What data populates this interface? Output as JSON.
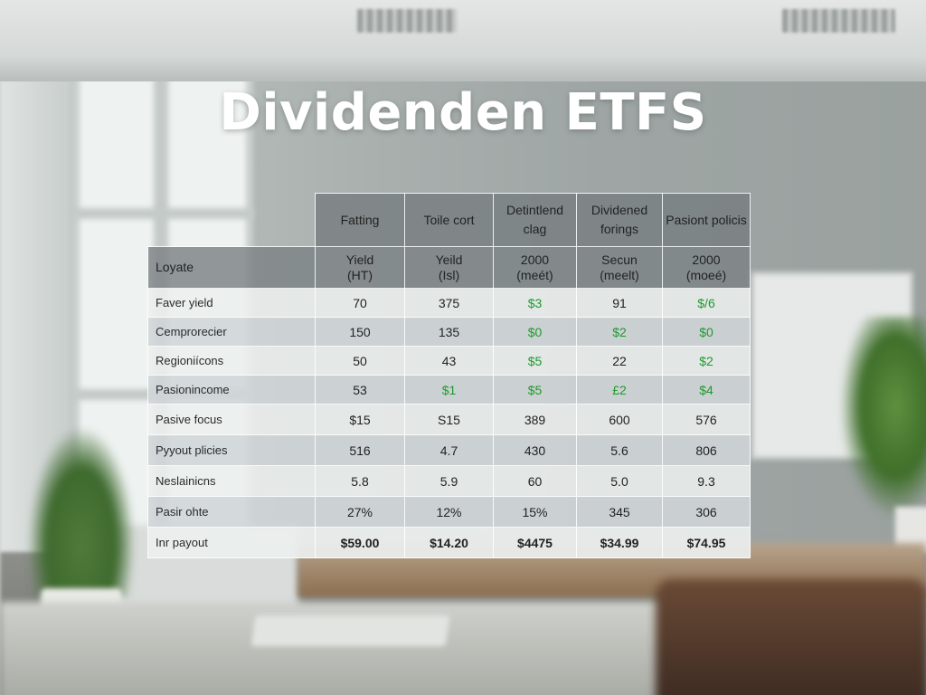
{
  "title": "Dividenden ETFS",
  "table": {
    "headers": [
      "Fatting",
      "Toile cort",
      "Detintlend clag",
      "Dividened forings",
      "Pasiont policis"
    ],
    "subheader": {
      "label": "Loyate",
      "cells": [
        [
          "Yield",
          "(HT)"
        ],
        [
          "Yeild",
          "(Isl)"
        ],
        [
          "2000",
          "(meét)"
        ],
        [
          "Secun",
          "(meelt)"
        ],
        [
          "2000",
          "(moeé)"
        ]
      ]
    },
    "rows": [
      {
        "label": "Faver yield",
        "values": [
          "70",
          "375",
          "$3",
          "91",
          "$/6"
        ],
        "green": [
          false,
          false,
          true,
          false,
          true
        ]
      },
      {
        "label": "Cemprorecier",
        "values": [
          "150",
          "135",
          "$0",
          "$2",
          "$0"
        ],
        "green": [
          false,
          false,
          true,
          true,
          true
        ]
      },
      {
        "label": "Regioniícons",
        "values": [
          "50",
          "43",
          "$5",
          "22",
          "$2"
        ],
        "green": [
          false,
          false,
          true,
          false,
          true
        ]
      },
      {
        "label": "Pasionincome",
        "values": [
          "53",
          "$1",
          "$5",
          "£2",
          "$4"
        ],
        "green": [
          false,
          true,
          true,
          true,
          true
        ]
      },
      {
        "label": "Pasive focus",
        "values": [
          "$15",
          "S15",
          "389",
          "600",
          "576"
        ],
        "green": [
          false,
          false,
          false,
          false,
          false
        ]
      },
      {
        "label": "Pyyout plicies",
        "values": [
          "516",
          "4.7",
          "430",
          "5.6",
          "806"
        ],
        "green": [
          false,
          false,
          false,
          false,
          false
        ]
      },
      {
        "label": "Neslainicns",
        "values": [
          "5.8",
          "5.9",
          "60",
          "5.0",
          "9.3"
        ],
        "green": [
          false,
          false,
          false,
          false,
          false
        ]
      },
      {
        "label": "Pasir ohte",
        "values": [
          "27%",
          "12%",
          "15%",
          "345",
          "306"
        ],
        "green": [
          false,
          false,
          false,
          false,
          false
        ]
      },
      {
        "label": "Inr payout",
        "values": [
          "$59.00",
          "$14.20",
          "$4475",
          "$34.99",
          "$74.95"
        ],
        "green": [
          false,
          false,
          false,
          false,
          false
        ]
      }
    ]
  },
  "colors": {
    "green": "#1f9a2c",
    "header_gray": "#787e80",
    "title": "#ffffff"
  }
}
